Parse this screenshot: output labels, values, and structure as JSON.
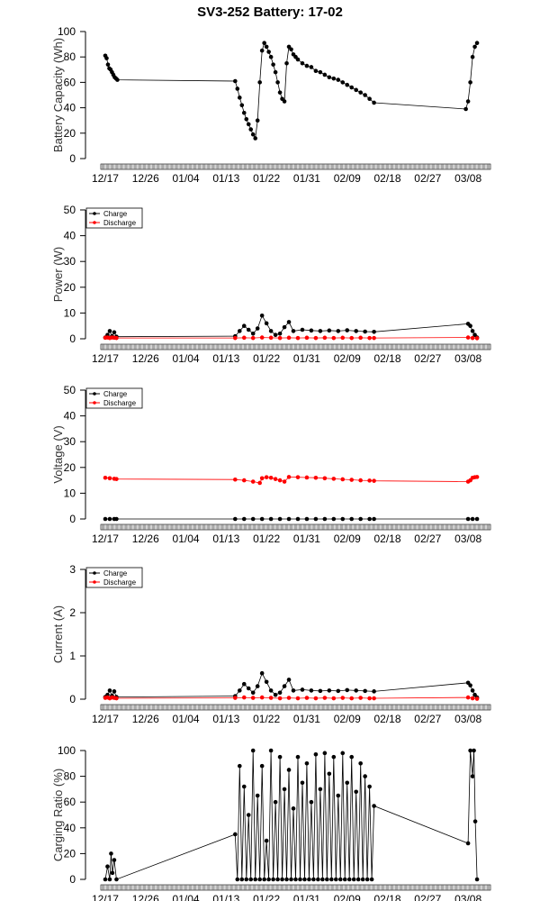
{
  "page_title": "SV3-252 Battery: 17-02",
  "colors": {
    "charge": "#000000",
    "discharge": "#ff0000",
    "axis": "#000000"
  },
  "x_axis": {
    "tick_labels": [
      "12/17",
      "12/26",
      "01/04",
      "01/13",
      "01/22",
      "01/31",
      "02/09",
      "02/18",
      "02/27",
      "03/08"
    ],
    "tick_days": [
      0,
      9,
      18,
      27,
      36,
      45,
      54,
      63,
      72,
      81
    ],
    "xlim_days": [
      -1,
      86
    ]
  },
  "chart_data": [
    {
      "type": "line",
      "ylabel": "Battery Capacity (Wh)",
      "ylim": [
        0,
        100
      ],
      "yticks": [
        0,
        20,
        40,
        60,
        80,
        100
      ],
      "legend": null,
      "series": [
        {
          "name": "",
          "color": "#000000",
          "x": [
            0.0,
            0.3,
            0.6,
            0.9,
            1.2,
            1.5,
            1.8,
            2.1,
            2.4,
            2.7,
            29.0,
            29.5,
            30.0,
            30.5,
            31.0,
            31.5,
            32.0,
            32.5,
            33.0,
            33.5,
            34.0,
            34.5,
            35.0,
            35.5,
            36.0,
            36.5,
            37.0,
            37.5,
            38.0,
            38.5,
            39.0,
            39.5,
            40.0,
            40.5,
            41.0,
            41.5,
            42.0,
            42.5,
            43.0,
            44.0,
            45.0,
            46.0,
            47.0,
            48.0,
            49.0,
            50.0,
            51.0,
            52.0,
            53.0,
            54.0,
            55.0,
            56.0,
            57.0,
            58.0,
            59.0,
            60.0,
            80.5,
            81.0,
            81.5,
            82.0,
            82.5,
            83.0
          ],
          "y": [
            81,
            79,
            74,
            71,
            70,
            68,
            66,
            64,
            63,
            62,
            61,
            55,
            48,
            42,
            36,
            31,
            27,
            23,
            19,
            16,
            30,
            60,
            85,
            91,
            88,
            84,
            80,
            74,
            68,
            60,
            52,
            47,
            45,
            75,
            88,
            86,
            82,
            80,
            78,
            75,
            73,
            72,
            69,
            68,
            66,
            64,
            63,
            62,
            60,
            58,
            56,
            54,
            52,
            50,
            47,
            44,
            39,
            45,
            60,
            80,
            88,
            91
          ]
        }
      ]
    },
    {
      "type": "line",
      "ylabel": "Power (W)",
      "ylim": [
        0,
        50
      ],
      "yticks": [
        0,
        10,
        20,
        30,
        40,
        50
      ],
      "legend": {
        "position": "top-left",
        "entries": [
          "Charge",
          "Discharge"
        ]
      },
      "series": [
        {
          "name": "Charge",
          "color": "#000000",
          "x": [
            0.0,
            0.5,
            1.0,
            1.5,
            2.0,
            2.5,
            29.0,
            30.0,
            31.0,
            32.0,
            33.0,
            34.0,
            35.0,
            36.0,
            37.0,
            38.0,
            39.0,
            40.0,
            41.0,
            42.0,
            44.0,
            46.0,
            48.0,
            50.0,
            52.0,
            54.0,
            56.0,
            58.0,
            60.0,
            81.0,
            81.5,
            82.0,
            82.5,
            83.0
          ],
          "y": [
            0.5,
            1.5,
            3.0,
            1.0,
            2.5,
            0.8,
            1.0,
            3.0,
            5.0,
            3.5,
            2.0,
            4.0,
            9.0,
            6.0,
            3.0,
            1.5,
            2.0,
            4.5,
            6.5,
            3.0,
            3.5,
            3.2,
            3.0,
            3.2,
            3.0,
            3.3,
            3.0,
            2.8,
            2.7,
            5.8,
            5.0,
            3.0,
            1.5,
            0.5
          ]
        },
        {
          "name": "Discharge",
          "color": "#ff0000",
          "x": [
            0.0,
            0.5,
            1.0,
            1.5,
            2.0,
            2.5,
            29.0,
            31.0,
            33.0,
            35.0,
            37.0,
            39.0,
            41.0,
            43.0,
            45.0,
            47.0,
            49.0,
            51.0,
            53.0,
            55.0,
            57.0,
            59.0,
            60.0,
            81.0,
            82.0,
            83.0
          ],
          "y": [
            0.4,
            0.5,
            0.3,
            0.5,
            0.4,
            0.3,
            0.3,
            0.4,
            0.3,
            0.5,
            0.4,
            0.3,
            0.4,
            0.3,
            0.4,
            0.3,
            0.4,
            0.3,
            0.4,
            0.3,
            0.4,
            0.3,
            0.3,
            0.5,
            0.3,
            0.2
          ]
        }
      ]
    },
    {
      "type": "line",
      "ylabel": "Voltage (V)",
      "ylim": [
        0,
        50
      ],
      "yticks": [
        0,
        10,
        20,
        30,
        40,
        50
      ],
      "legend": {
        "position": "top-left",
        "entries": [
          "Charge",
          "Discharge"
        ]
      },
      "series": [
        {
          "name": "Charge",
          "color": "#000000",
          "x": [
            0.0,
            1.0,
            2.0,
            2.5,
            29.0,
            31.0,
            33.0,
            35.0,
            37.0,
            39.0,
            41.0,
            43.0,
            45.0,
            47.0,
            49.0,
            51.0,
            53.0,
            55.0,
            57.0,
            59.0,
            60.0,
            81.0,
            82.0,
            83.0
          ],
          "y": [
            0,
            0,
            0,
            0,
            0,
            0,
            0,
            0,
            0,
            0,
            0,
            0,
            0,
            0,
            0,
            0,
            0,
            0,
            0,
            0,
            0,
            0,
            0,
            0
          ]
        },
        {
          "name": "Discharge",
          "color": "#ff0000",
          "x": [
            0.0,
            1.0,
            2.0,
            2.5,
            29.0,
            31.0,
            33.0,
            34.5,
            35.0,
            36.0,
            37.0,
            38.0,
            39.0,
            40.0,
            41.0,
            43.0,
            45.0,
            47.0,
            49.0,
            51.0,
            53.0,
            55.0,
            57.0,
            59.0,
            60.0,
            81.0,
            81.5,
            82.0,
            82.5,
            83.0
          ],
          "y": [
            16,
            15.8,
            15.6,
            15.5,
            15.3,
            15.0,
            14.5,
            14.0,
            15.8,
            16.2,
            16.0,
            15.5,
            15.0,
            14.5,
            16.3,
            16.2,
            16.1,
            16.0,
            15.8,
            15.6,
            15.4,
            15.2,
            15.0,
            14.9,
            14.8,
            14.5,
            15.0,
            16.0,
            16.2,
            16.3
          ]
        }
      ]
    },
    {
      "type": "line",
      "ylabel": "Current (A)",
      "ylim": [
        0,
        3.0
      ],
      "yticks": [
        0.0,
        1.0,
        2.0,
        3.0
      ],
      "legend": {
        "position": "top-left",
        "entries": [
          "Charge",
          "Discharge"
        ]
      },
      "series": [
        {
          "name": "Charge",
          "color": "#000000",
          "x": [
            0.0,
            0.5,
            1.0,
            1.5,
            2.0,
            2.5,
            29.0,
            30.0,
            31.0,
            32.0,
            33.0,
            34.0,
            35.0,
            36.0,
            37.0,
            38.0,
            39.0,
            40.0,
            41.0,
            42.0,
            44.0,
            46.0,
            48.0,
            50.0,
            52.0,
            54.0,
            56.0,
            58.0,
            60.0,
            81.0,
            81.5,
            82.0,
            82.5,
            83.0
          ],
          "y": [
            0.05,
            0.1,
            0.2,
            0.08,
            0.18,
            0.05,
            0.07,
            0.2,
            0.35,
            0.25,
            0.15,
            0.3,
            0.6,
            0.4,
            0.2,
            0.1,
            0.15,
            0.3,
            0.45,
            0.2,
            0.22,
            0.2,
            0.19,
            0.2,
            0.19,
            0.21,
            0.2,
            0.19,
            0.18,
            0.38,
            0.32,
            0.2,
            0.1,
            0.04
          ]
        },
        {
          "name": "Discharge",
          "color": "#ff0000",
          "x": [
            0.0,
            0.5,
            1.0,
            1.5,
            2.0,
            2.5,
            29.0,
            31.0,
            33.0,
            35.0,
            37.0,
            39.0,
            41.0,
            43.0,
            45.0,
            47.0,
            49.0,
            51.0,
            53.0,
            55.0,
            57.0,
            59.0,
            60.0,
            81.0,
            82.0,
            83.0
          ],
          "y": [
            0.03,
            0.04,
            0.02,
            0.04,
            0.03,
            0.02,
            0.03,
            0.04,
            0.03,
            0.04,
            0.03,
            0.02,
            0.03,
            0.02,
            0.03,
            0.02,
            0.03,
            0.02,
            0.03,
            0.02,
            0.03,
            0.02,
            0.02,
            0.04,
            0.02,
            0.01
          ]
        }
      ]
    },
    {
      "type": "line",
      "ylabel": "Carging Ratio (%)",
      "ylim": [
        0,
        100
      ],
      "yticks": [
        0,
        20,
        40,
        60,
        80,
        100
      ],
      "legend": null,
      "series": [
        {
          "name": "",
          "color": "#000000",
          "x": [
            0.0,
            0.5,
            1.0,
            1.3,
            1.6,
            2.0,
            2.5,
            29.0,
            29.5,
            30.0,
            30.5,
            31.0,
            31.5,
            32.0,
            32.5,
            33.0,
            33.5,
            34.0,
            34.5,
            35.0,
            35.5,
            36.0,
            36.5,
            37.0,
            37.5,
            38.0,
            38.5,
            39.0,
            39.5,
            40.0,
            40.5,
            41.0,
            41.5,
            42.0,
            42.5,
            43.0,
            43.5,
            44.0,
            44.5,
            45.0,
            45.5,
            46.0,
            46.5,
            47.0,
            47.5,
            48.0,
            48.5,
            49.0,
            49.5,
            50.0,
            50.5,
            51.0,
            51.5,
            52.0,
            52.5,
            53.0,
            53.5,
            54.0,
            54.5,
            55.0,
            55.5,
            56.0,
            56.5,
            57.0,
            57.5,
            58.0,
            58.5,
            59.0,
            59.5,
            60.0,
            81.0,
            81.5,
            82.0,
            82.3,
            82.6,
            83.0
          ],
          "y": [
            0,
            10,
            0,
            20,
            5,
            15,
            0,
            35,
            0,
            88,
            0,
            72,
            0,
            50,
            0,
            100,
            0,
            65,
            0,
            88,
            0,
            30,
            0,
            100,
            0,
            60,
            0,
            95,
            0,
            70,
            0,
            85,
            0,
            55,
            0,
            95,
            0,
            75,
            0,
            90,
            0,
            60,
            0,
            97,
            0,
            70,
            0,
            98,
            0,
            82,
            0,
            95,
            0,
            65,
            0,
            98,
            0,
            75,
            0,
            95,
            0,
            68,
            0,
            90,
            0,
            80,
            0,
            72,
            0,
            57,
            28,
            100,
            80,
            100,
            45,
            0
          ]
        }
      ]
    }
  ]
}
